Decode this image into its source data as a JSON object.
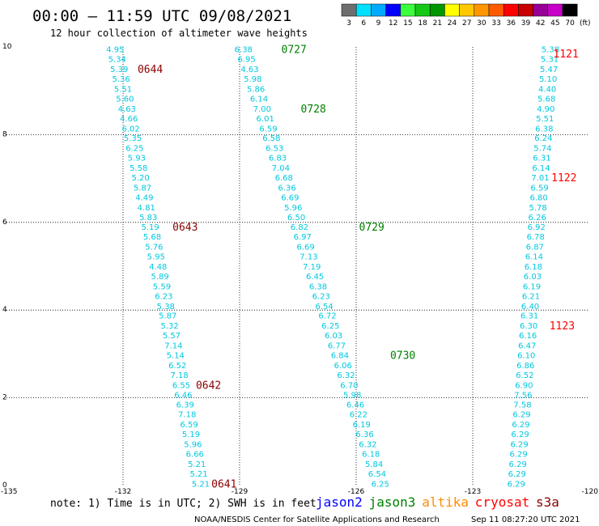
{
  "chart_data": {
    "type": "scatter",
    "title": "00:00 – 11:59 UTC 09/08/2021",
    "subtitle": "12 hour collection of altimeter wave heights",
    "x_ticks": [
      "-135",
      "-132",
      "-129",
      "-126",
      "-123",
      "-120"
    ],
    "y_ticks": [
      "0",
      "2",
      "4",
      "6",
      "8",
      "10"
    ],
    "xlim": [
      -135,
      -120
    ],
    "ylim": [
      0,
      10
    ],
    "grid": "dotted",
    "legend": {
      "unit_label": "(ft)",
      "bins": [
        {
          "label": "3",
          "color": "#6e6e6e"
        },
        {
          "label": "6",
          "color": "#00e1ff"
        },
        {
          "label": "9",
          "color": "#00aaff"
        },
        {
          "label": "12",
          "color": "#0000ff"
        },
        {
          "label": "15",
          "color": "#3cff3c"
        },
        {
          "label": "18",
          "color": "#14c814"
        },
        {
          "label": "21",
          "color": "#009600"
        },
        {
          "label": "24",
          "color": "#ffff00"
        },
        {
          "label": "27",
          "color": "#ffc800"
        },
        {
          "label": "30",
          "color": "#ff9600"
        },
        {
          "label": "33",
          "color": "#ff5a00"
        },
        {
          "label": "36",
          "color": "#ff0000"
        },
        {
          "label": "39",
          "color": "#c80000"
        },
        {
          "label": "42",
          "color": "#960096"
        },
        {
          "label": "45",
          "color": "#c800c8"
        },
        {
          "label": "70",
          "color": "#000000"
        }
      ]
    },
    "point_color": "#00c8e0",
    "series": [
      {
        "lat": [
          9.95,
          9.73,
          9.5,
          9.28,
          9.05,
          8.83,
          8.6,
          8.38,
          8.15,
          7.93,
          7.7,
          7.48,
          7.25,
          7.03,
          6.8,
          6.58,
          6.35,
          6.13,
          5.9,
          5.68,
          5.45,
          5.23,
          5.0,
          4.78,
          4.55,
          4.33,
          4.1,
          3.88,
          3.65,
          3.43,
          3.2,
          2.98,
          2.75,
          2.53,
          2.3,
          2.08,
          1.85,
          1.63,
          1.4,
          1.18,
          0.95,
          0.73,
          0.5,
          0.28,
          0.05
        ],
        "lon": [
          -132.2,
          -132.15,
          -132.1,
          -132.05,
          -132.0,
          -131.95,
          -131.9,
          -131.85,
          -131.8,
          -131.75,
          -131.7,
          -131.65,
          -131.6,
          -131.55,
          -131.5,
          -131.45,
          -131.4,
          -131.35,
          -131.3,
          -131.25,
          -131.2,
          -131.15,
          -131.1,
          -131.05,
          -131.0,
          -130.95,
          -130.9,
          -130.85,
          -130.8,
          -130.75,
          -130.7,
          -130.65,
          -130.6,
          -130.55,
          -130.5,
          -130.45,
          -130.4,
          -130.35,
          -130.3,
          -130.25,
          -130.2,
          -130.15,
          -130.1,
          -130.05,
          -130.0
        ],
        "values": [
          "4.95",
          "5.34",
          "5.39",
          "5.36",
          "5.51",
          "5.60",
          "4.63",
          "4.66",
          "6.02",
          "5.35",
          "6.25",
          "5.93",
          "5.58",
          "5.20",
          "5.87",
          "4.49",
          "4.81",
          "5.83",
          "5.19",
          "5.68",
          "5.76",
          "5.95",
          "4.48",
          "5.89",
          "5.59",
          "6.23",
          "5.38",
          "5.87",
          "5.32",
          "5.57",
          "7.14",
          "5.14",
          "6.52",
          "7.18",
          "6.55",
          "6.46",
          "6.39",
          "7.18",
          "6.59",
          "5.19",
          "5.96",
          "6.66",
          "5.21",
          "5.21",
          "5.21"
        ]
      },
      {
        "lat": [
          9.95,
          9.73,
          9.5,
          9.28,
          9.05,
          8.83,
          8.6,
          8.38,
          8.15,
          7.93,
          7.7,
          7.48,
          7.25,
          7.03,
          6.8,
          6.58,
          6.35,
          6.13,
          5.9,
          5.68,
          5.45,
          5.23,
          5.0,
          4.78,
          4.55,
          4.33,
          4.1,
          3.88,
          3.65,
          3.43,
          3.2,
          2.98,
          2.75,
          2.53,
          2.3,
          2.08,
          1.85,
          1.63,
          1.4,
          1.18,
          0.95,
          0.73,
          0.5,
          0.28,
          0.05
        ],
        "lon": [
          -128.9,
          -128.82,
          -128.74,
          -128.66,
          -128.58,
          -128.5,
          -128.42,
          -128.34,
          -128.26,
          -128.18,
          -128.1,
          -128.02,
          -127.94,
          -127.86,
          -127.78,
          -127.7,
          -127.62,
          -127.54,
          -127.46,
          -127.38,
          -127.3,
          -127.22,
          -127.14,
          -127.06,
          -126.98,
          -126.9,
          -126.82,
          -126.74,
          -126.66,
          -126.58,
          -126.5,
          -126.42,
          -126.34,
          -126.26,
          -126.18,
          -126.1,
          -126.02,
          -125.94,
          -125.86,
          -125.78,
          -125.7,
          -125.62,
          -125.54,
          -125.46,
          -125.38
        ],
        "values": [
          "6.38",
          "6.95",
          "4.63",
          "5.98",
          "5.86",
          "6.14",
          "7.00",
          "6.01",
          "6.59",
          "6.58",
          "6.53",
          "6.83",
          "7.04",
          "6.68",
          "6.36",
          "6.69",
          "5.96",
          "6.50",
          "6.82",
          "6.97",
          "6.69",
          "7.13",
          "7.19",
          "6.45",
          "6.38",
          "6.23",
          "6.54",
          "6.72",
          "6.25",
          "6.03",
          "6.77",
          "6.84",
          "6.06",
          "6.32",
          "6.70",
          "5.98",
          "6.46",
          "6.22",
          "6.19",
          "6.36",
          "6.32",
          "6.18",
          "5.84",
          "6.54",
          "6.25"
        ]
      },
      {
        "lat": [
          9.95,
          9.73,
          9.5,
          9.28,
          9.05,
          8.83,
          8.6,
          8.38,
          8.15,
          7.93,
          7.7,
          7.48,
          7.25,
          7.03,
          6.8,
          6.58,
          6.35,
          6.13,
          5.9,
          5.68,
          5.45,
          5.23,
          5.0,
          4.78,
          4.55,
          4.33,
          4.1,
          3.88,
          3.65,
          3.43,
          3.2,
          2.98,
          2.75,
          2.53,
          2.3,
          2.08,
          1.85,
          1.63,
          1.4,
          1.18,
          0.95,
          0.73,
          0.5,
          0.28,
          0.05
        ],
        "lon": [
          -121.0,
          -121.02,
          -121.04,
          -121.06,
          -121.08,
          -121.1,
          -121.12,
          -121.14,
          -121.16,
          -121.18,
          -121.2,
          -121.22,
          -121.24,
          -121.26,
          -121.28,
          -121.3,
          -121.32,
          -121.34,
          -121.36,
          -121.38,
          -121.4,
          -121.42,
          -121.44,
          -121.46,
          -121.48,
          -121.5,
          -121.52,
          -121.54,
          -121.56,
          -121.58,
          -121.6,
          -121.62,
          -121.64,
          -121.66,
          -121.68,
          -121.7,
          -121.72,
          -121.74,
          -121.76,
          -121.78,
          -121.8,
          -121.82,
          -121.84,
          -121.86,
          -121.88
        ],
        "values": [
          "5.38",
          "5.31",
          "5.47",
          "5.10",
          "4.40",
          "5.68",
          "4.90",
          "5.51",
          "6.38",
          "6.24",
          "5.74",
          "6.31",
          "6.14",
          "7.01",
          "6.59",
          "6.80",
          "5.78",
          "6.26",
          "6.92",
          "6.78",
          "6.87",
          "6.14",
          "6.18",
          "6.03",
          "6.19",
          "6.21",
          "6.40",
          "6.31",
          "6.30",
          "6.16",
          "6.47",
          "6.10",
          "6.86",
          "6.52",
          "6.90",
          "7.56",
          "7.58",
          "6.29",
          "6.29",
          "6.29",
          "6.29",
          "6.29",
          "6.29",
          "6.29",
          "6.29"
        ]
      }
    ],
    "time_labels": [
      {
        "text": "0644",
        "color": "#8b0000",
        "lat": 9.5,
        "lon": -131.3
      },
      {
        "text": "0643",
        "color": "#8b0000",
        "lat": 5.9,
        "lon": -130.4
      },
      {
        "text": "0642",
        "color": "#8b0000",
        "lat": 2.3,
        "lon": -129.8
      },
      {
        "text": "0641",
        "color": "#8b0000",
        "lat": 0.05,
        "lon": -129.4
      },
      {
        "text": "0727",
        "color": "#008000",
        "lat": 9.95,
        "lon": -127.6
      },
      {
        "text": "0728",
        "color": "#008000",
        "lat": 8.6,
        "lon": -127.1
      },
      {
        "text": "0729",
        "color": "#008000",
        "lat": 5.9,
        "lon": -125.6
      },
      {
        "text": "0730",
        "color": "#008000",
        "lat": 2.98,
        "lon": -124.8
      },
      {
        "text": "1121",
        "color": "#ff0000",
        "lat": 9.85,
        "lon": -120.6
      },
      {
        "text": "1122",
        "color": "#ff0000",
        "lat": 7.03,
        "lon": -120.65
      },
      {
        "text": "1123",
        "color": "#ff0000",
        "lat": 3.65,
        "lon": -120.7
      }
    ]
  },
  "footer": {
    "note": "note: 1) Time is in UTC; 2) SWH is in feet",
    "satellites": [
      {
        "label": "jason2",
        "color": "#0000ff"
      },
      {
        "label": "jason3",
        "color": "#008000"
      },
      {
        "label": "altika",
        "color": "#ff8c00"
      },
      {
        "label": "cryosat",
        "color": "#ff0000"
      },
      {
        "label": "s3a",
        "color": "#8b0000"
      }
    ],
    "credit": "NOAA/NESDIS Center for Satellite Applications and Research",
    "timestamp": "Sep 11 08:27:20 UTC 2021"
  }
}
